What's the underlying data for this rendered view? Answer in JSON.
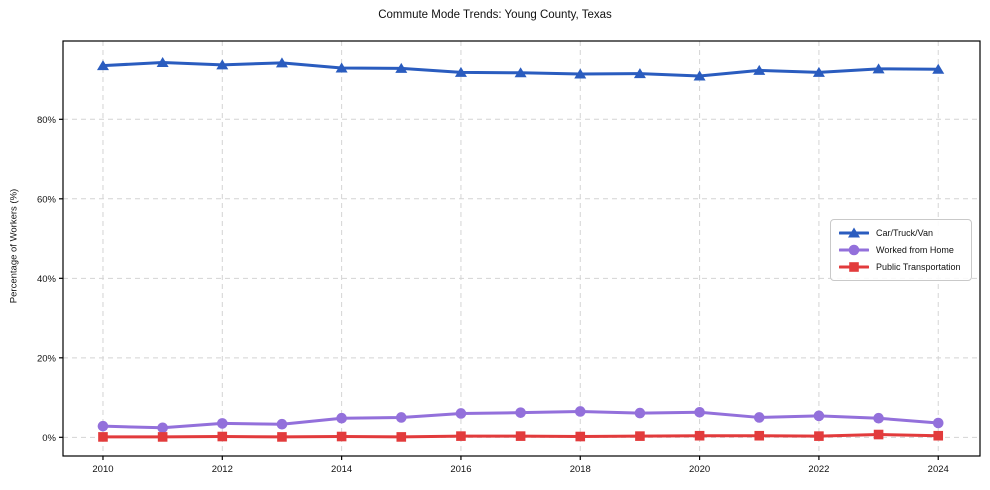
{
  "chart_data": {
    "type": "line",
    "title": "Commute Mode Trends: Young County, Texas",
    "xlabel": "",
    "ylabel": "Percentage of Workers (%)",
    "x": [
      2010,
      2011,
      2012,
      2013,
      2014,
      2015,
      2016,
      2017,
      2018,
      2019,
      2020,
      2021,
      2022,
      2023,
      2024
    ],
    "series": [
      {
        "name": "Car/Truck/Van",
        "color": "#2a5cbf",
        "marker": "triangle",
        "values": [
          93.5,
          94.3,
          93.7,
          94.2,
          92.9,
          92.8,
          91.8,
          91.7,
          91.4,
          91.5,
          90.9,
          92.3,
          91.8,
          92.7,
          92.6
        ]
      },
      {
        "name": "Worked from Home",
        "color": "#9370db",
        "marker": "circle",
        "values": [
          2.8,
          2.4,
          3.5,
          3.3,
          4.8,
          5.0,
          6.0,
          6.2,
          6.5,
          6.1,
          6.3,
          5.0,
          5.4,
          4.8,
          3.6
        ]
      },
      {
        "name": "Public Transportation",
        "color": "#e23b3c",
        "marker": "square",
        "values": [
          0.1,
          0.1,
          0.2,
          0.1,
          0.2,
          0.1,
          0.3,
          0.3,
          0.2,
          0.3,
          0.4,
          0.4,
          0.3,
          0.7,
          0.4
        ]
      }
    ],
    "xticks": [
      2010,
      2012,
      2014,
      2016,
      2018,
      2020,
      2022,
      2024
    ],
    "yticks": [
      0,
      20,
      40,
      60,
      80
    ],
    "ytick_labels": [
      "0%",
      "20%",
      "40%",
      "60%",
      "80%"
    ],
    "xlim": [
      2009.33,
      2024.7
    ],
    "ylim": [
      -4.7,
      99.7
    ],
    "grid": true,
    "grid_style": "dashed",
    "legend_position": "center-right"
  },
  "colors": {
    "grid": "#d4d4d4",
    "axis": "#000000",
    "text": "#111111",
    "background": "#ffffff"
  }
}
